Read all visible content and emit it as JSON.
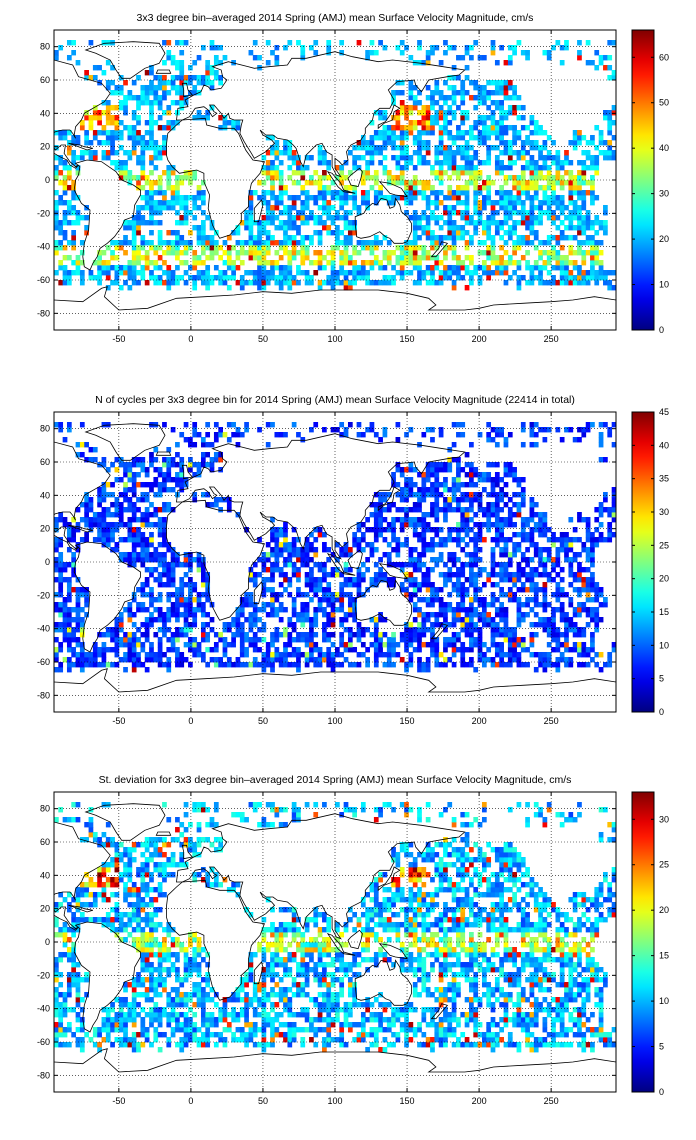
{
  "charts": [
    {
      "title": "3x3 degree bin–averaged 2014 Spring (AMJ) mean Surface Velocity Magnitude, cm/s",
      "cbar_ticks": [
        "0",
        "10",
        "20",
        "30",
        "40",
        "50",
        "60"
      ]
    },
    {
      "title": "N of cycles per 3x3 degree bin for 2014 Spring (AMJ) mean Surface Velocity Magnitude (22414 in total)",
      "cbar_ticks": [
        "0",
        "5",
        "10",
        "15",
        "20",
        "25",
        "30",
        "35",
        "40",
        "45"
      ]
    },
    {
      "title": "St. deviation for 3x3 degree bin–averaged 2014 Spring (AMJ) mean Surface Velocity Magnitude, cm/s",
      "cbar_ticks": [
        "0",
        "5",
        "10",
        "15",
        "20",
        "25",
        "30"
      ]
    }
  ],
  "chart_data": [
    {
      "type": "heatmap",
      "title": "3x3 degree bin–averaged 2014 Spring (AMJ) mean Surface Velocity Magnitude, cm/s",
      "xlim": [
        -95,
        295
      ],
      "ylim": [
        -90,
        90
      ],
      "xticks": [
        -50,
        0,
        50,
        100,
        150,
        200,
        250
      ],
      "yticks": [
        -80,
        -60,
        -40,
        -20,
        0,
        20,
        40,
        60,
        80
      ],
      "grid": "dotted",
      "colormap": "jet",
      "clim": [
        0,
        66
      ],
      "colorbar_ticks": [
        0,
        10,
        20,
        30,
        40,
        50,
        60
      ],
      "bin_size_deg": 3
    },
    {
      "type": "heatmap",
      "title": "N of cycles per 3x3 degree bin for 2014 Spring (AMJ) mean Surface Velocity Magnitude (22414 in total)",
      "xlim": [
        -95,
        295
      ],
      "ylim": [
        -90,
        90
      ],
      "xticks": [
        -50,
        0,
        50,
        100,
        150,
        200,
        250
      ],
      "yticks": [
        -80,
        -60,
        -40,
        -20,
        0,
        20,
        40,
        60,
        80
      ],
      "grid": "dotted",
      "colormap": "jet",
      "clim": [
        0,
        45
      ],
      "colorbar_ticks": [
        0,
        5,
        10,
        15,
        20,
        25,
        30,
        35,
        40,
        45
      ],
      "bin_size_deg": 3
    },
    {
      "type": "heatmap",
      "title": "St. deviation for 3x3 degree bin–averaged 2014 Spring (AMJ) mean Surface Velocity Magnitude, cm/s",
      "xlim": [
        -95,
        295
      ],
      "ylim": [
        -90,
        90
      ],
      "xticks": [
        -50,
        0,
        50,
        100,
        150,
        200,
        250
      ],
      "yticks": [
        -80,
        -60,
        -40,
        -20,
        0,
        20,
        40,
        60,
        80
      ],
      "grid": "dotted",
      "colormap": "jet",
      "clim": [
        0,
        33
      ],
      "colorbar_ticks": [
        0,
        5,
        10,
        15,
        20,
        25,
        30
      ],
      "bin_size_deg": 3
    }
  ]
}
